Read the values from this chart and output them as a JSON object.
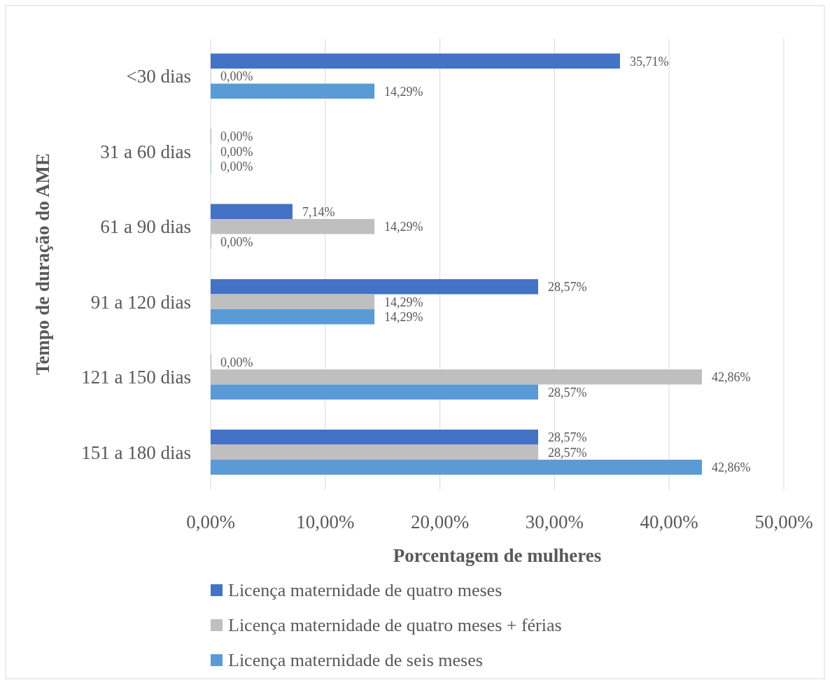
{
  "chart_data": {
    "type": "bar",
    "orientation": "horizontal",
    "ylabel": "Tempo de duração do AME",
    "xlabel": "Porcentagem de mulheres",
    "categories": [
      "<30 dias",
      "31 a 60 dias",
      "61 a 90 dias",
      "91 a 120 dias",
      "121 a 150 dias",
      "151 a 180 dias"
    ],
    "series": [
      {
        "name": "Licença maternidade de quatro meses",
        "color": "#4472c4",
        "values": [
          35.71,
          0,
          7.14,
          28.57,
          0,
          28.57
        ],
        "value_labels": [
          "35,71%",
          "0,00%",
          "7,14%",
          "28,57%",
          "0,00%",
          "28,57%"
        ]
      },
      {
        "name": "Licença maternidade de quatro meses + férias",
        "color": "#bfbfbf",
        "values": [
          0,
          0,
          14.29,
          14.29,
          42.86,
          28.57
        ],
        "value_labels": [
          "0,00%",
          "0,00%",
          "14,29%",
          "14,29%",
          "42,86%",
          "28,57%"
        ]
      },
      {
        "name": "Licença maternidade de seis meses",
        "color": "#5b9bd5",
        "values": [
          14.29,
          0,
          0,
          14.29,
          28.57,
          42.86
        ],
        "value_labels": [
          "14,29%",
          "0,00%",
          "0,00%",
          "14,29%",
          "28,57%",
          "42,86%"
        ]
      }
    ],
    "xlim": [
      0,
      50
    ],
    "xticks": [
      {
        "value": 0,
        "label": "0,00%"
      },
      {
        "value": 10,
        "label": "10,00%"
      },
      {
        "value": 20,
        "label": "20,00%"
      },
      {
        "value": 30,
        "label": "30,00%"
      },
      {
        "value": 40,
        "label": "40,00%"
      },
      {
        "value": 50,
        "label": "50,00%"
      }
    ],
    "grid": "x",
    "legend": "bottom"
  }
}
